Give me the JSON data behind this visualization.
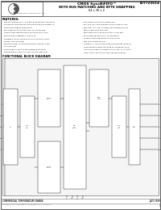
{
  "bg_color": "#ffffff",
  "header": {
    "logo_text": "Integrated Device Technology, Inc.",
    "title_line1": "CMOS SyncBiFIFO™",
    "title_line2": "WITH BUS MATCHING AND BYTE SWAPPING",
    "title_line3": "64 x 36 x 2",
    "part_number": "IDT723614"
  },
  "features_title": "FEATURES:",
  "features_left": [
    "Free synchronous port A and port B can be asynchronous or",
    "   synchronous simultaneous reading and writing at data in a",
    "   single-clock edge-to-edge design",
    "Two independent internal FIFOs, 64 x 36 storage",
    "   capacity each offering data in multiples of 9+1 bits",
    "Mailbox access Register for each FIFO",
    "Operates 8-bit bus sizing of 36-bit (nine word), 18-bit",
    "   (word), and 9-bit (byte)",
    "Selection of Big- or Little-Endian non-mirror word and",
    "   byte bus sizes",
    "Three-modes of byte-by-byte swapping on port B",
    "Programmable Almost Full and Almost Empty flags"
  ],
  "features_right": [
    "Microprocessor interface control logic",
    "EFA, EFB, HFA, and HFB flags synchronized by CLKA",
    "EFB, HFB, HFA, and HFA flags synchronized by CLKB",
    "Parity checking on each port",
    "Parity generation can be selected for each port",
    "Bus-master advanced RS-232 compatible",
    "Supports clock frequencies up to 83.3 MHz",
    "Fast access times of 10 ns",
    "Available in 1.69 pin-pitch quad flat packages (PQ8F) or",
    "   space saving 0.65mm thin quad flat packages (TQFP)",
    "Industrial temperature ranges (-40 to +85°C) in certain",
    "   sizes; contact for military-specified specifications"
  ],
  "block_diagram_title": "FUNCTIONAL BLOCK DIAGRAM",
  "footer_left": "COMMERCIAL TEMPERATURE RANGE",
  "footer_center": "IDT 723614 is a registered trademark of Integrated Device Technologies, Inc.",
  "footer_right": "JULY 1999",
  "footer_page": "1"
}
